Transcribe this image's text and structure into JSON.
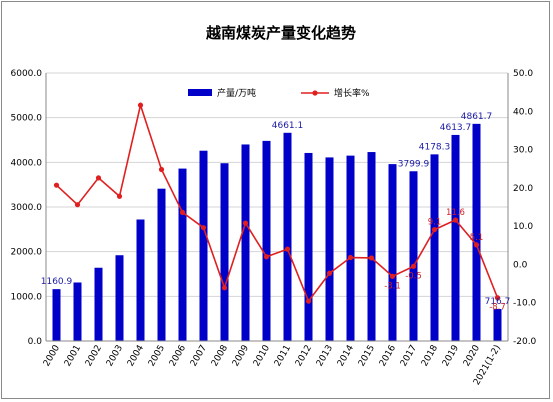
{
  "chart_data": {
    "type": "bar",
    "title": "越南煤炭产量变化趋势",
    "categories": [
      "2000",
      "2001",
      "2002",
      "2003",
      "2004",
      "2005",
      "2006",
      "2007",
      "2008",
      "2009",
      "2010",
      "2011",
      "2012",
      "2013",
      "2014",
      "2015",
      "2016",
      "2017",
      "2018",
      "2019",
      "2020",
      "2021(1-2)"
    ],
    "series": [
      {
        "name": "产量/万吨",
        "chart_type": "bar",
        "axis": "left",
        "color": "#0000c8",
        "values": [
          1160.9,
          1310,
          1640,
          1920,
          2720,
          3410,
          3860,
          4260,
          3980,
          4400,
          4480,
          4661.1,
          4210,
          4110,
          4150,
          4230,
          3960,
          3799.9,
          4178.3,
          4613.7,
          4861.7,
          716.7
        ]
      },
      {
        "name": "增长率%",
        "chart_type": "line",
        "axis": "right",
        "color": "#e02020",
        "values": [
          20.7,
          15.6,
          22.6,
          17.8,
          41.6,
          24.8,
          13.6,
          9.6,
          -6.1,
          10.8,
          2.0,
          4.0,
          -9.6,
          -2.3,
          1.8,
          1.7,
          -3.1,
          -0.5,
          9.1,
          11.6,
          5.1,
          -8.7
        ]
      }
    ],
    "y_left": {
      "ylim": [
        0,
        6000
      ],
      "ticks": [
        "0.0",
        "1000.0",
        "2000.0",
        "3000.0",
        "4000.0",
        "5000.0",
        "6000.0"
      ]
    },
    "y_right": {
      "ylim": [
        -20,
        50
      ],
      "ticks": [
        "-20.0",
        "-10.0",
        "0.0",
        "10.0",
        "20.0",
        "30.0",
        "40.0",
        "50.0"
      ]
    },
    "bar_labels": [
      {
        "index": 0,
        "text": "1160.9"
      },
      {
        "index": 11,
        "text": "4661.1"
      },
      {
        "index": 17,
        "text": "3799.9"
      },
      {
        "index": 18,
        "text": "4178.3"
      },
      {
        "index": 19,
        "text": "4613.7"
      },
      {
        "index": 20,
        "text": "4861.7"
      },
      {
        "index": 21,
        "text": "716.7"
      }
    ],
    "rate_labels": [
      {
        "index": 16,
        "text": "-3.1"
      },
      {
        "index": 17,
        "text": "-0.5"
      },
      {
        "index": 18,
        "text": "9.1"
      },
      {
        "index": 19,
        "text": "11.6"
      },
      {
        "index": 20,
        "text": "5.1"
      },
      {
        "index": 21,
        "text": "-8.7"
      }
    ],
    "grid": true,
    "legend": "top-center",
    "xlabel": "",
    "ylabel": ""
  }
}
